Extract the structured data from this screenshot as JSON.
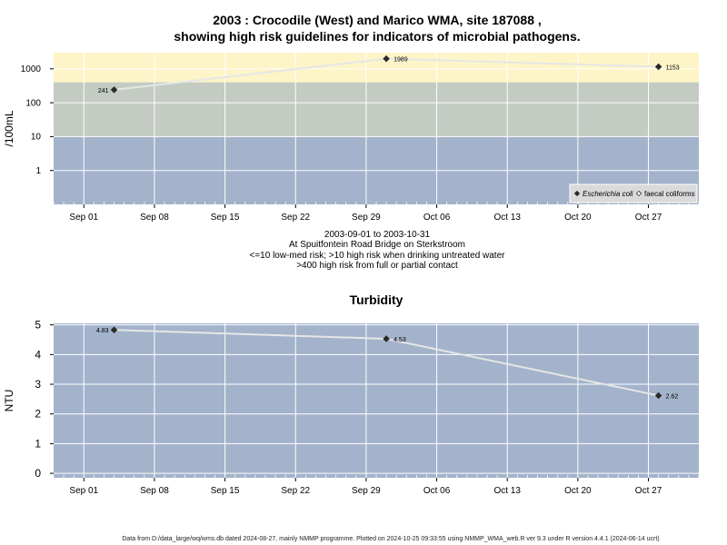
{
  "top": {
    "title_line1": "2003 : Crocodile (West) and Marico WMA, site 187088 ,",
    "title_line2": "showing high risk guidelines for indicators of microbial pathogens."
  },
  "caption": {
    "line1": "2003-09-01 to 2003-10-31",
    "line2": "At Spuitfontein Road Bridge on Sterkstroom",
    "line3": "<=10 low-med risk; >10 high risk when drinking untreated water",
    "line4": ">400 high risk from full or partial contact"
  },
  "footer": "Data from D:/data_large/wq/wms.db dated 2024-08-27, mainly NMMP programme. Plotted on 2024-10-25 09:33:55 using NMMP_WMA_web.R ver 9.3 under R version 4.4.1 (2024-06-14 ucrt)",
  "colors": {
    "band_high_contact": "#fdf5c7",
    "band_high_drink": "#c3cbc2",
    "band_low": "#a3b3cb",
    "grid": "#ffffff",
    "line": "#e6e6e6",
    "point": "#2a2a2a"
  },
  "chart_data": [
    {
      "type": "line",
      "title": "",
      "xlabel": "",
      "ylabel": "/100mL",
      "yscale": "log",
      "ylim": [
        0.1,
        3000
      ],
      "yticks": [
        1,
        10,
        100,
        1000
      ],
      "ytick_labels": [
        "1",
        "10",
        "100",
        "1000"
      ],
      "xticks": [
        "2003-09-01",
        "2003-09-08",
        "2003-09-15",
        "2003-09-22",
        "2003-09-29",
        "2003-10-06",
        "2003-10-13",
        "2003-10-20",
        "2003-10-27"
      ],
      "xtick_labels": [
        "Sep 01",
        "Sep 08",
        "Sep 15",
        "Sep 22",
        "Sep 29",
        "Oct 06",
        "Oct 13",
        "Oct 20",
        "Oct 27"
      ],
      "xlim": [
        "2003-08-29",
        "2003-11-01"
      ],
      "bands": [
        {
          "from": 400,
          "to": 3000,
          "color_key": "band_high_contact"
        },
        {
          "from": 10,
          "to": 400,
          "color_key": "band_high_drink"
        },
        {
          "from": 0.1,
          "to": 10,
          "color_key": "band_low"
        }
      ],
      "series": [
        {
          "name": "Escherichia coli",
          "x": [
            "2003-09-04",
            "2003-10-01",
            "2003-10-28"
          ],
          "y": [
            241,
            1989,
            1153
          ],
          "labels": [
            "241",
            "1989",
            "1153"
          ]
        }
      ],
      "legend": [
        {
          "label": "Escherichia coli",
          "marker": "filled-diamond"
        },
        {
          "label": "faecal coliforms",
          "marker": "open-diamond"
        }
      ],
      "legend_position": "bottom-right",
      "grid": true
    },
    {
      "type": "line",
      "title": "Turbidity",
      "xlabel": "",
      "ylabel": "NTU",
      "ylim": [
        -0.15,
        5.05
      ],
      "yticks": [
        0,
        1,
        2,
        3,
        4,
        5
      ],
      "ytick_labels": [
        "0",
        "1",
        "2",
        "3",
        "4",
        "5"
      ],
      "xticks": [
        "2003-09-01",
        "2003-09-08",
        "2003-09-15",
        "2003-09-22",
        "2003-09-29",
        "2003-10-06",
        "2003-10-13",
        "2003-10-20",
        "2003-10-27"
      ],
      "xtick_labels": [
        "Sep 01",
        "Sep 08",
        "Sep 15",
        "Sep 22",
        "Sep 29",
        "Oct 06",
        "Oct 13",
        "Oct 20",
        "Oct 27"
      ],
      "xlim": [
        "2003-08-29",
        "2003-11-01"
      ],
      "series": [
        {
          "x": [
            "2003-09-04",
            "2003-10-01",
            "2003-10-28"
          ],
          "y": [
            4.83,
            4.53,
            2.62
          ],
          "labels": [
            "4.83",
            "4.53",
            "2.62"
          ]
        }
      ],
      "grid": true
    }
  ]
}
